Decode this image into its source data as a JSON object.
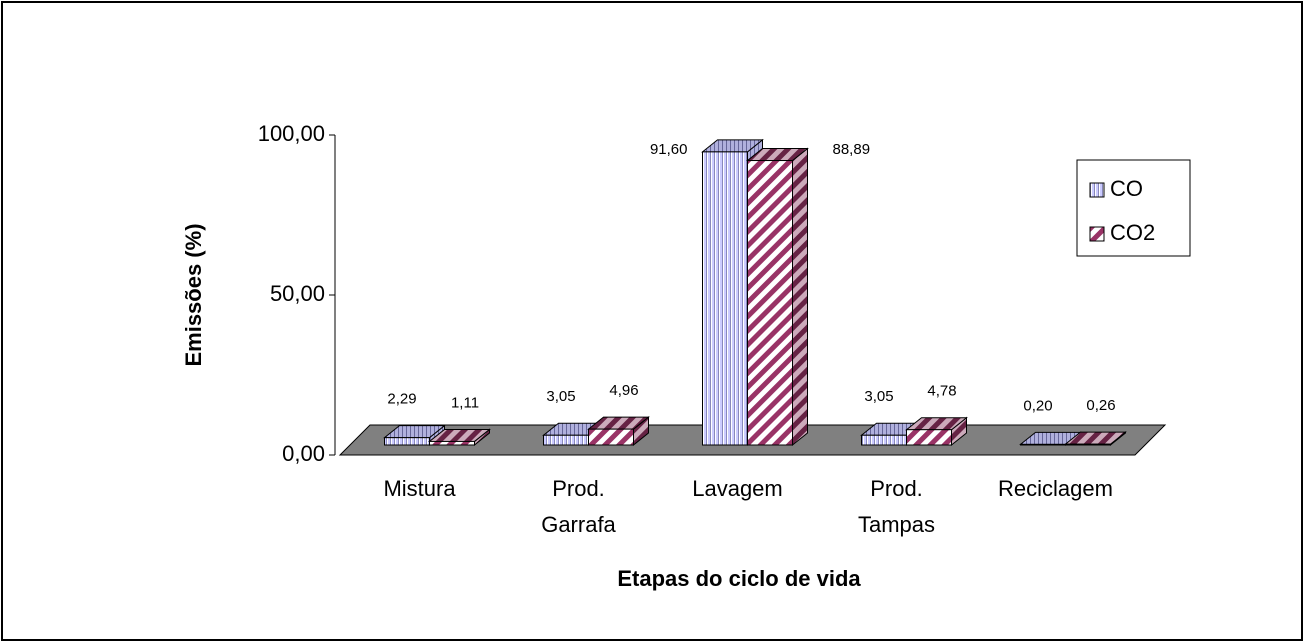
{
  "chart_data": {
    "type": "bar3d",
    "x_label": "Etapas do ciclo de vida",
    "y_label": "Emissões (%)",
    "categories": [
      "Mistura",
      "Prod. Garrafa",
      "Lavagem",
      "Prod. Tampas",
      "Reciclagem"
    ],
    "series": [
      {
        "name": "CO",
        "color": "#ccccff",
        "values": [
          2.29,
          3.05,
          91.6,
          3.05,
          0.2
        ],
        "value_labels": [
          "2,29",
          "3,05",
          "91,60",
          "3,05",
          "0,20"
        ]
      },
      {
        "name": "CO2",
        "color": "#993366",
        "values": [
          1.11,
          4.96,
          88.89,
          4.78,
          0.26
        ],
        "value_labels": [
          "1,11",
          "4,96",
          "88,89",
          "4,78",
          "0,26"
        ]
      }
    ],
    "ylim": [
      0,
      100
    ],
    "yticks": [
      {
        "value": 0,
        "label": "0,00"
      },
      {
        "value": 50,
        "label": "50,00"
      },
      {
        "value": 100,
        "label": "100,00"
      }
    ],
    "legend": "right"
  }
}
